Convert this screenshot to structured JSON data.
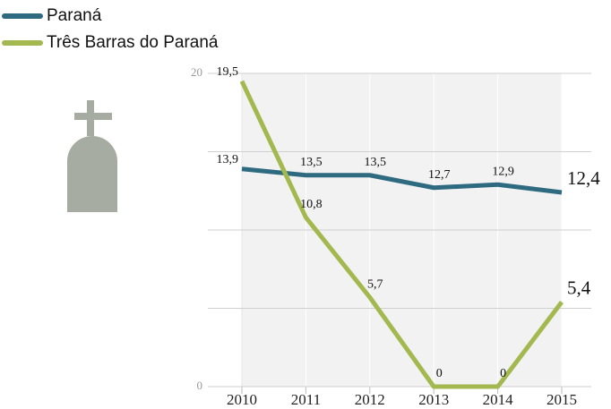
{
  "chart_data": {
    "type": "line",
    "categories": [
      "2010",
      "2011",
      "2012",
      "2013",
      "2014",
      "2015"
    ],
    "series": [
      {
        "name": "Paraná",
        "color": "#2e6b80",
        "values": [
          13.9,
          13.5,
          13.5,
          12.7,
          12.9,
          12.4
        ],
        "value_labels": [
          "13,9",
          "13,5",
          "13,5",
          "12,7",
          "12,9",
          "12,4"
        ]
      },
      {
        "name": "Três Barras do Paraná",
        "color": "#a3b84e",
        "values": [
          19.5,
          10.8,
          5.7,
          0,
          0,
          5.4
        ],
        "value_labels": [
          "19,5",
          "10,8",
          "5,7",
          "0",
          "0",
          "5,4"
        ]
      }
    ],
    "ylim": [
      0,
      20
    ],
    "yticks": [
      0,
      20
    ],
    "minor_yticks": [
      5,
      10,
      15
    ],
    "grid": true,
    "legend": "top-left"
  }
}
